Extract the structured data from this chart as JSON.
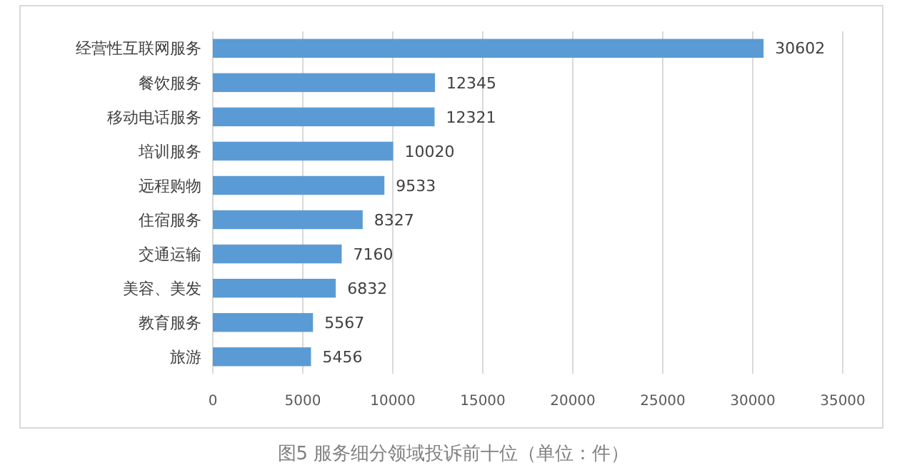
{
  "chart_data": {
    "type": "bar",
    "orientation": "horizontal",
    "title": "图5  服务细分领域投诉前十位（单位：件）",
    "categories": [
      "经营性互联网服务",
      "餐饮服务",
      "移动电话服务",
      "培训服务",
      "远程购物",
      "住宿服务",
      "交通运输",
      "美容、美发",
      "教育服务",
      "旅游"
    ],
    "values": [
      30602,
      12345,
      12321,
      10020,
      9533,
      8327,
      7160,
      6832,
      5567,
      5456
    ],
    "color": "#5b9bd5",
    "xlim": [
      0,
      35000
    ],
    "xticks": [
      0,
      5000,
      10000,
      15000,
      20000,
      25000,
      30000,
      35000
    ],
    "grid": "x",
    "data_labels": true
  }
}
